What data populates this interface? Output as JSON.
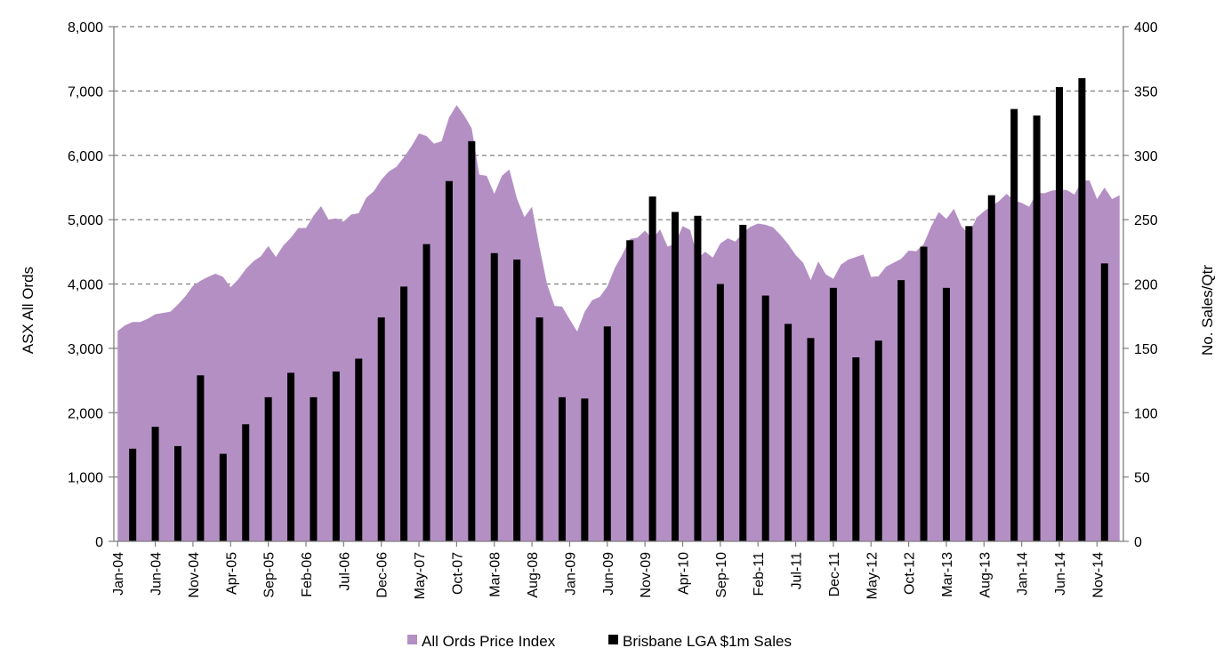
{
  "chart_data": {
    "type": "bar",
    "ylabel_left": "ASX All Ords",
    "ylabel_right": "No. Sales/Qtr",
    "ylim_left": [
      0,
      8000
    ],
    "yticks_left": [
      "0",
      "1,000",
      "2,000",
      "3,000",
      "4,000",
      "5,000",
      "6,000",
      "7,000",
      "8,000"
    ],
    "ylim_right": [
      0,
      400
    ],
    "yticks_right": [
      "0",
      "50",
      "100",
      "150",
      "200",
      "250",
      "300",
      "350",
      "400"
    ],
    "x_tick_labels": [
      "Jan-04",
      "Jun-04",
      "Nov-04",
      "Apr-05",
      "Sep-05",
      "Feb-06",
      "Jul-06",
      "Dec-06",
      "May-07",
      "Oct-07",
      "Mar-08",
      "Aug-08",
      "Jan-09",
      "Jun-09",
      "Nov-09",
      "Apr-10",
      "Sep-10",
      "Feb-11",
      "Jul-11",
      "Dec-11",
      "May-12",
      "Oct-12",
      "Mar-13",
      "Aug-13",
      "Jan-14",
      "Jun-14",
      "Nov-14"
    ],
    "grid": "horizontal dashed",
    "legend_position": "bottom",
    "colors": {
      "area": "#b48fc4",
      "bars": "#000000",
      "grid": "#808080",
      "axis": "#808080"
    },
    "series": [
      {
        "name": "All Ords Price Index",
        "kind": "area",
        "axis": "left",
        "start": "Jan-04",
        "frequency": "monthly",
        "values": [
          3270,
          3360,
          3410,
          3410,
          3460,
          3530,
          3550,
          3570,
          3680,
          3810,
          3970,
          4050,
          4110,
          4160,
          4110,
          3950,
          4070,
          4230,
          4350,
          4430,
          4590,
          4420,
          4600,
          4720,
          4870,
          4870,
          5060,
          5210,
          5000,
          5020,
          4970,
          5080,
          5100,
          5340,
          5440,
          5620,
          5750,
          5820,
          5970,
          6140,
          6340,
          6300,
          6180,
          6220,
          6590,
          6780,
          6620,
          6420,
          5700,
          5680,
          5400,
          5680,
          5780,
          5330,
          5040,
          5200,
          4570,
          4000,
          3660,
          3650,
          3450,
          3260,
          3570,
          3750,
          3800,
          3960,
          4250,
          4460,
          4700,
          4720,
          4830,
          4700,
          4850,
          4580,
          4630,
          4900,
          4840,
          4400,
          4500,
          4410,
          4630,
          4710,
          4660,
          4800,
          4890,
          4940,
          4920,
          4880,
          4760,
          4620,
          4450,
          4330,
          4060,
          4350,
          4150,
          4080,
          4300,
          4380,
          4420,
          4460,
          4110,
          4120,
          4270,
          4330,
          4390,
          4520,
          4510,
          4620,
          4900,
          5120,
          5010,
          5170,
          4900,
          4770,
          5030,
          5130,
          5210,
          5290,
          5400,
          5300,
          5260,
          5200,
          5420,
          5410,
          5450,
          5470,
          5460,
          5390,
          5610,
          5610,
          5320,
          5500,
          5320,
          5380
        ]
      },
      {
        "name": "Brisbane LGA $1m Sales",
        "kind": "bar",
        "axis": "right",
        "start": "Mar-04",
        "frequency": "quarterly",
        "values": [
          72,
          89,
          74,
          129,
          68,
          91,
          112,
          131,
          112,
          132,
          142,
          174,
          198,
          231,
          280,
          311,
          224,
          219,
          174,
          112,
          111,
          167,
          234,
          268,
          256,
          253,
          200,
          246,
          191,
          169,
          158,
          197,
          143,
          156,
          203,
          229,
          197,
          245,
          269,
          336,
          331,
          353,
          360,
          216
        ]
      }
    ]
  }
}
